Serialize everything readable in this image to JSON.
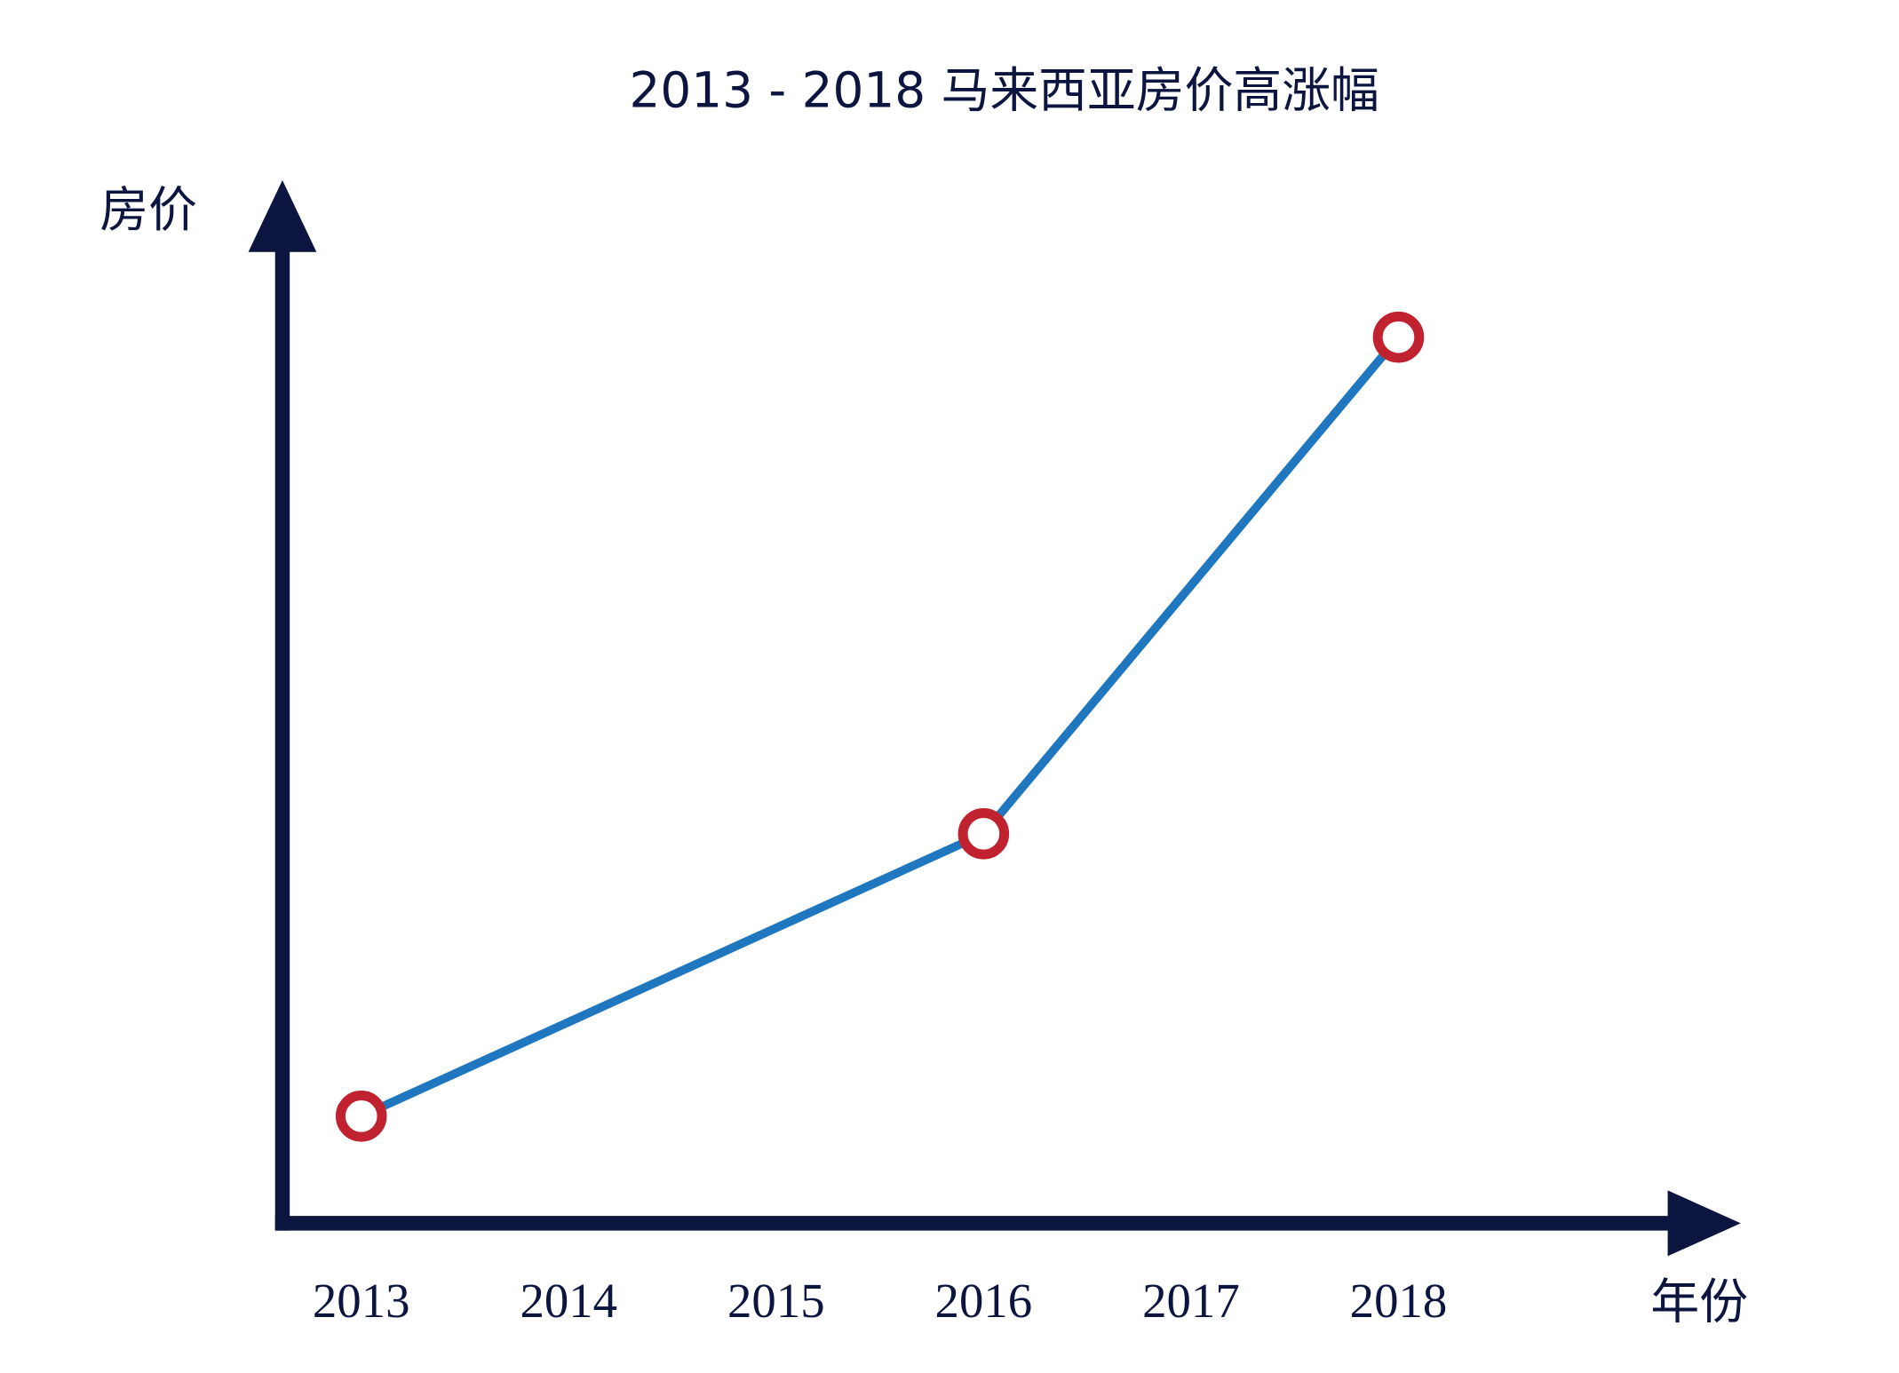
{
  "chart_data": {
    "type": "line",
    "title": "2013 - 2018 马来西亚房价高涨幅",
    "y_label": "房价",
    "x_label": "年份",
    "x": [
      2013,
      2016,
      2018
    ],
    "values": [
      11,
      40,
      91
    ],
    "xlim": [
      2012.62,
      2019.65
    ],
    "xticks": [
      2013,
      2014,
      2015,
      2016,
      2017,
      2018
    ],
    "ylim": [
      0,
      100
    ],
    "color": "#1f77bf",
    "marker_color": "#c0222f",
    "grid": false
  }
}
